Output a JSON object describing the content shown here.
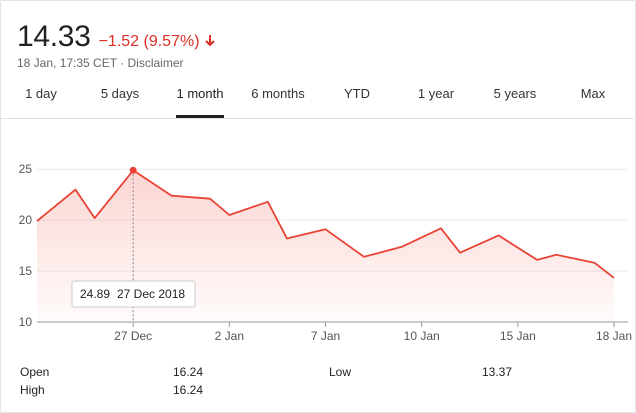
{
  "quote": {
    "price": "14.33",
    "change": "−1.52 (9.57%)",
    "meta": "18 Jan, 17:35 CET · Disclaimer",
    "down_color": "#d93025"
  },
  "tabs": [
    {
      "label": "1 day"
    },
    {
      "label": "5 days"
    },
    {
      "label": "1 month",
      "active": true
    },
    {
      "label": "6 months"
    },
    {
      "label": "YTD"
    },
    {
      "label": "1 year"
    },
    {
      "label": "5 years"
    },
    {
      "label": "Max"
    }
  ],
  "chart_data": {
    "type": "area",
    "ylim": [
      10,
      26
    ],
    "y_ticks": [
      10,
      15,
      20,
      25
    ],
    "x_tick_labels": [
      "27 Dec",
      "2 Jan",
      "7 Jan",
      "10 Jan",
      "15 Jan",
      "18 Jan"
    ],
    "x_tick_index": [
      5,
      10,
      15,
      20,
      25,
      30
    ],
    "x_index": [
      0,
      2,
      3,
      5,
      7,
      9,
      10,
      12,
      13,
      15,
      17,
      19,
      21,
      22,
      24,
      26,
      27,
      29,
      30
    ],
    "values": [
      19.9,
      23.0,
      20.2,
      24.89,
      22.4,
      22.1,
      20.5,
      21.8,
      18.2,
      19.1,
      16.4,
      17.4,
      19.2,
      16.8,
      18.5,
      16.1,
      16.6,
      15.8,
      14.33
    ],
    "line_color": "#ea4335",
    "tooltip": {
      "value": "24.89",
      "date": "27 Dec 2018",
      "point_index": 3
    }
  },
  "stats": [
    {
      "label": "Open",
      "value": "16.24"
    },
    {
      "label": "High",
      "value": "16.24"
    },
    {
      "label": "Low",
      "value": "13.37"
    }
  ]
}
